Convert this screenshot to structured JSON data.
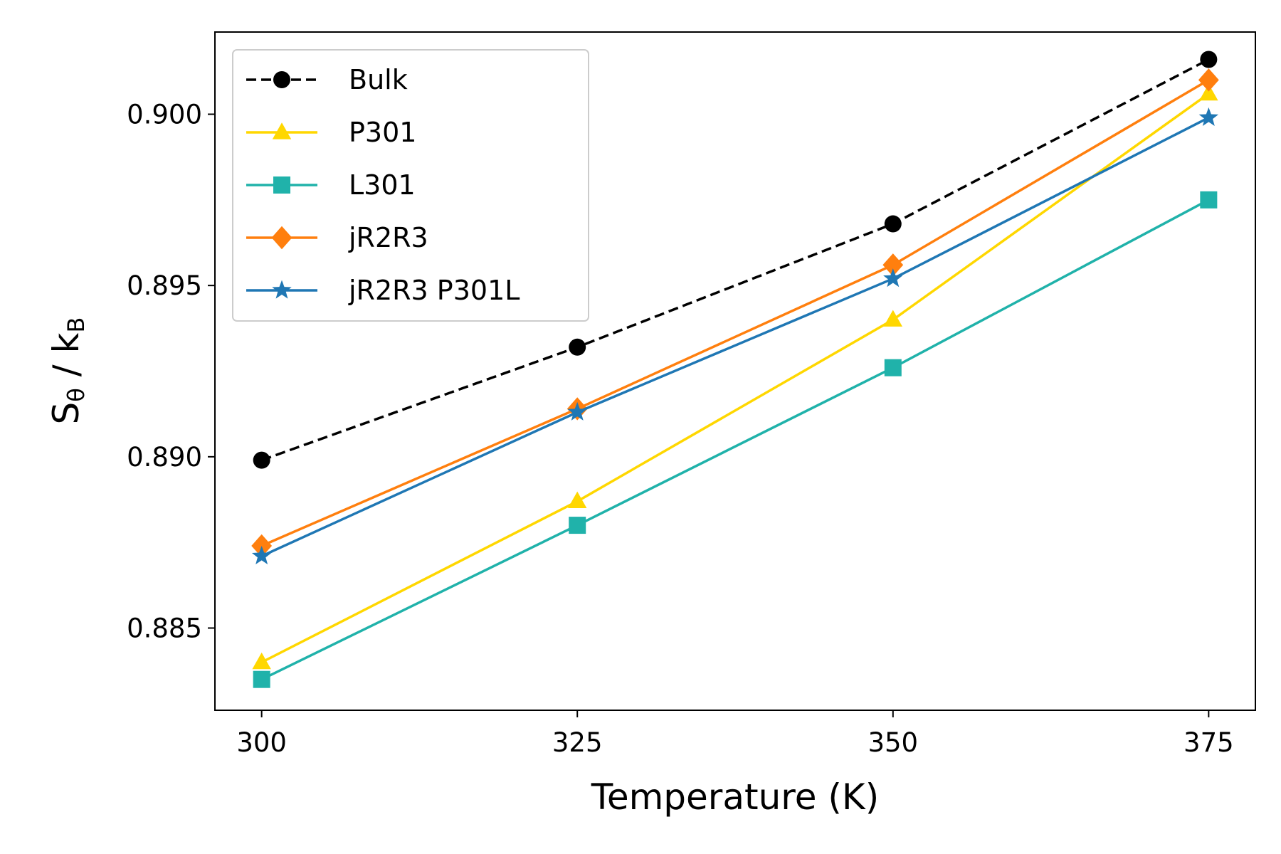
{
  "chart_data": {
    "type": "line",
    "title": "",
    "xlabel": "Temperature (K)",
    "ylabel": {
      "main": "S",
      "sub1": "θ",
      "mid": " / k",
      "sub2": "B"
    },
    "x": [
      300,
      325,
      350,
      375
    ],
    "xticks": [
      "300",
      "325",
      "350",
      "375"
    ],
    "yticks": [
      "0.885",
      "0.890",
      "0.895",
      "0.900"
    ],
    "xlim": [
      296.3,
      378.7
    ],
    "ylim": [
      0.8826,
      0.9024
    ],
    "grid": false,
    "legend_position": "upper-left",
    "series": [
      {
        "name": "Bulk",
        "color": "#000000",
        "dash": true,
        "marker": "circle",
        "values": [
          0.8899,
          0.8932,
          0.8968,
          0.9016
        ]
      },
      {
        "name": "P301",
        "color": "#FFD700",
        "dash": false,
        "marker": "triangle",
        "values": [
          0.884,
          0.8887,
          0.894,
          0.9006
        ]
      },
      {
        "name": "L301",
        "color": "#20B2AA",
        "dash": false,
        "marker": "square",
        "values": [
          0.8835,
          0.888,
          0.8926,
          0.8975
        ]
      },
      {
        "name": "jR2R3",
        "color": "#FF7F0E",
        "dash": false,
        "marker": "diamond",
        "values": [
          0.8874,
          0.8914,
          0.8956,
          0.901
        ]
      },
      {
        "name": "jR2R3 P301L",
        "color": "#1F77B4",
        "dash": false,
        "marker": "star",
        "values": [
          0.8871,
          0.8913,
          0.8952,
          0.8999
        ]
      }
    ]
  }
}
